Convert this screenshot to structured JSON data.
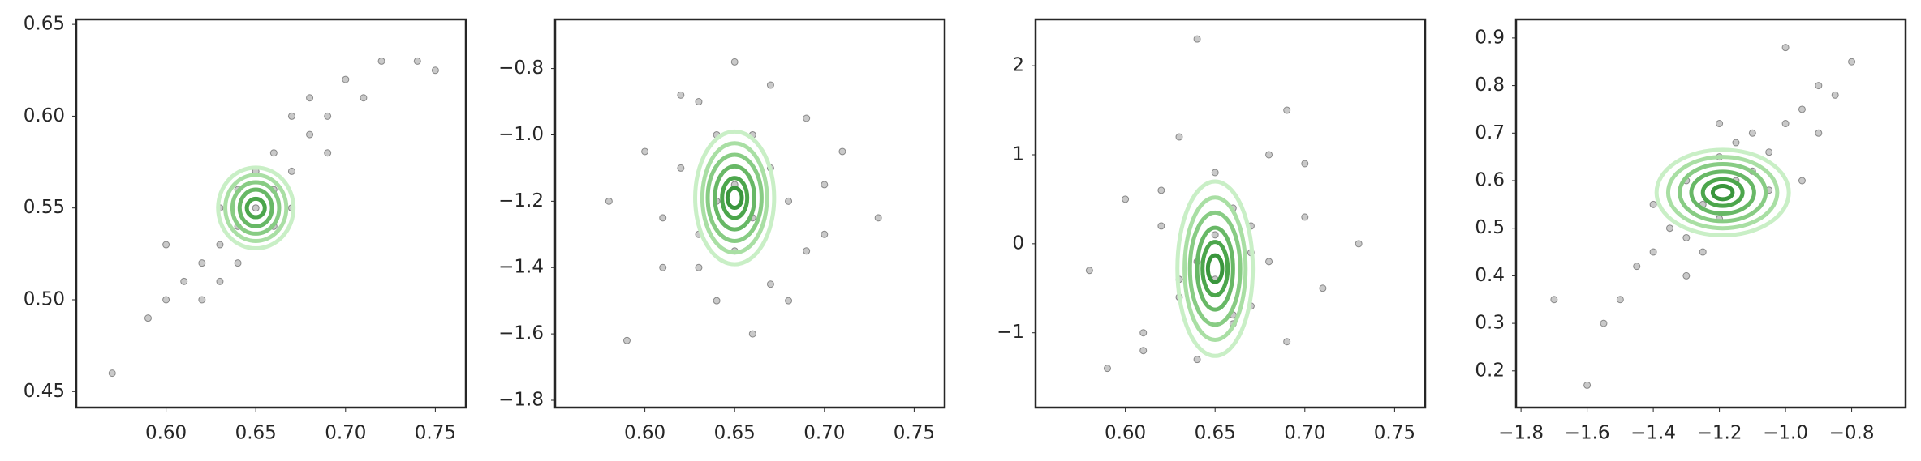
{
  "chart_data": [
    {
      "type": "scatter",
      "color": "#4d4d4d",
      "x": [
        0.57,
        0.59,
        0.6,
        0.61,
        0.62,
        0.62,
        0.63,
        0.63,
        0.64,
        0.64,
        0.65,
        0.65,
        0.66,
        0.66,
        0.67,
        0.67,
        0.68,
        0.68,
        0.69,
        0.7,
        0.71,
        0.72,
        0.74,
        0.75,
        0.6,
        0.63,
        0.66,
        0.69,
        0.64,
        0.67
      ],
      "y": [
        0.46,
        0.49,
        0.5,
        0.51,
        0.52,
        0.5,
        0.53,
        0.55,
        0.54,
        0.52,
        0.55,
        0.57,
        0.56,
        0.58,
        0.57,
        0.6,
        0.59,
        0.61,
        0.6,
        0.62,
        0.61,
        0.63,
        0.63,
        0.625,
        0.53,
        0.51,
        0.54,
        0.58,
        0.56,
        0.55
      ],
      "ellipse": {
        "cx": 0.65,
        "cy": 0.55,
        "rx": [
          0.021,
          0.017,
          0.013,
          0.009,
          0.005
        ],
        "ry": [
          0.022,
          0.018,
          0.014,
          0.01,
          0.005
        ]
      },
      "xlim": [
        0.55,
        0.767
      ],
      "ylim": [
        0.4413,
        0.6527
      ],
      "xticks": [
        {
          "value": 0.6,
          "label": "0.60"
        },
        0.65,
        {
          "value": 0.7,
          "label": "0.70"
        },
        0.75
      ],
      "yticks": [
        0.45,
        {
          "value": 0.5,
          "label": "0.50"
        },
        0.55,
        {
          "value": 0.6,
          "label": "0.60"
        },
        0.65
      ]
    },
    {
      "type": "scatter",
      "color": "#4d4d4d",
      "x": [
        0.58,
        0.6,
        0.61,
        0.62,
        0.63,
        0.63,
        0.64,
        0.64,
        0.65,
        0.65,
        0.65,
        0.66,
        0.66,
        0.67,
        0.67,
        0.68,
        0.69,
        0.7,
        0.71,
        0.73,
        0.59,
        0.62,
        0.68,
        0.64,
        0.66,
        0.7,
        0.61,
        0.67,
        0.63,
        0.69
      ],
      "y": [
        -1.2,
        -1.05,
        -1.4,
        -1.1,
        -0.9,
        -1.3,
        -1.2,
        -1.5,
        -0.78,
        -1.15,
        -1.35,
        -1.0,
        -1.25,
        -1.45,
        -1.1,
        -1.2,
        -0.95,
        -1.3,
        -1.05,
        -1.25,
        -1.62,
        -0.88,
        -1.5,
        -1.0,
        -1.6,
        -1.15,
        -1.25,
        -0.85,
        -1.4,
        -1.35
      ],
      "ellipse": {
        "cx": 0.65,
        "cy": -1.19,
        "rx": [
          0.022,
          0.018,
          0.015,
          0.011,
          0.007,
          0.004
        ],
        "ry": [
          0.2,
          0.165,
          0.13,
          0.095,
          0.06,
          0.03
        ]
      },
      "xlim": [
        0.55,
        0.767
      ],
      "ylim": [
        -1.822,
        -0.652
      ],
      "xticks": [
        {
          "value": 0.6,
          "label": "0.60"
        },
        0.65,
        {
          "value": 0.7,
          "label": "0.70"
        },
        0.75
      ],
      "yticks": [
        {
          "value": -1.8,
          "label": "−1.8"
        },
        {
          "value": -1.6,
          "label": "−1.6"
        },
        {
          "value": -1.4,
          "label": "−1.4"
        },
        {
          "value": -1.2,
          "label": "−1.2"
        },
        {
          "value": -1.0,
          "label": "−1.0"
        },
        {
          "value": -0.8,
          "label": "−0.8"
        }
      ]
    },
    {
      "type": "scatter",
      "color": "#4d4d4d",
      "x": [
        0.58,
        0.6,
        0.61,
        0.62,
        0.63,
        0.63,
        0.64,
        0.64,
        0.65,
        0.65,
        0.65,
        0.66,
        0.66,
        0.67,
        0.67,
        0.68,
        0.69,
        0.7,
        0.71,
        0.73,
        0.59,
        0.62,
        0.68,
        0.64,
        0.66,
        0.7,
        0.61,
        0.67,
        0.63,
        0.69
      ],
      "y": [
        -0.3,
        0.5,
        -1.0,
        0.2,
        -0.6,
        1.2,
        -0.2,
        -1.3,
        0.8,
        -0.4,
        0.1,
        -0.9,
        0.4,
        -0.1,
        -0.7,
        1.0,
        -1.1,
        0.3,
        -0.5,
        0.0,
        -1.4,
        0.6,
        -0.2,
        2.3,
        -0.8,
        0.9,
        -1.2,
        0.2,
        -0.4,
        1.5
      ],
      "ellipse": {
        "cx": 0.65,
        "cy": -0.28,
        "rx": [
          0.021,
          0.017,
          0.014,
          0.01,
          0.007,
          0.004
        ],
        "ry": [
          0.98,
          0.8,
          0.63,
          0.46,
          0.3,
          0.15
        ]
      },
      "xlim": [
        0.55,
        0.767
      ],
      "ylim": [
        -1.84,
        2.52
      ],
      "xticks": [
        {
          "value": 0.6,
          "label": "0.60"
        },
        0.65,
        {
          "value": 0.7,
          "label": "0.70"
        },
        0.75
      ],
      "yticks": [
        {
          "value": -1,
          "label": "−1"
        },
        0,
        1,
        2
      ]
    },
    {
      "type": "scatter",
      "color": "#4d4d4d",
      "x": [
        -1.6,
        -1.55,
        -1.5,
        -1.45,
        -1.4,
        -1.35,
        -1.3,
        -1.3,
        -1.25,
        -1.2,
        -1.2,
        -1.15,
        -1.1,
        -1.1,
        -1.05,
        -1.0,
        -0.95,
        -0.9,
        -0.85,
        -0.8,
        -1.7,
        -1.4,
        -1.25,
        -1.15,
        -1.0,
        -0.95,
        -1.3,
        -1.05,
        -1.2,
        -0.9
      ],
      "y": [
        0.17,
        0.3,
        0.35,
        0.42,
        0.45,
        0.5,
        0.48,
        0.6,
        0.55,
        0.52,
        0.65,
        0.6,
        0.62,
        0.7,
        0.66,
        0.72,
        0.75,
        0.8,
        0.78,
        0.85,
        0.35,
        0.55,
        0.45,
        0.68,
        0.88,
        0.6,
        0.4,
        0.58,
        0.72,
        0.7
      ],
      "ellipse": {
        "cx": -1.19,
        "cy": 0.575,
        "rx": [
          0.2,
          0.165,
          0.13,
          0.095,
          0.06,
          0.03
        ],
        "ry": [
          0.09,
          0.075,
          0.06,
          0.044,
          0.028,
          0.014
        ]
      },
      "xlim": [
        -1.815,
        -0.637
      ],
      "ylim": [
        0.123,
        0.939
      ],
      "xticks": [
        {
          "value": -1.8,
          "label": "−1.8"
        },
        {
          "value": -1.6,
          "label": "−1.6"
        },
        {
          "value": -1.4,
          "label": "−1.4"
        },
        {
          "value": -1.2,
          "label": "−1.2"
        },
        {
          "value": -1.0,
          "label": "−1.0"
        },
        {
          "value": -0.8,
          "label": "−0.8"
        }
      ],
      "yticks": [
        0.2,
        0.3,
        0.4,
        0.5,
        0.6,
        0.7,
        0.8,
        0.9
      ]
    }
  ]
}
